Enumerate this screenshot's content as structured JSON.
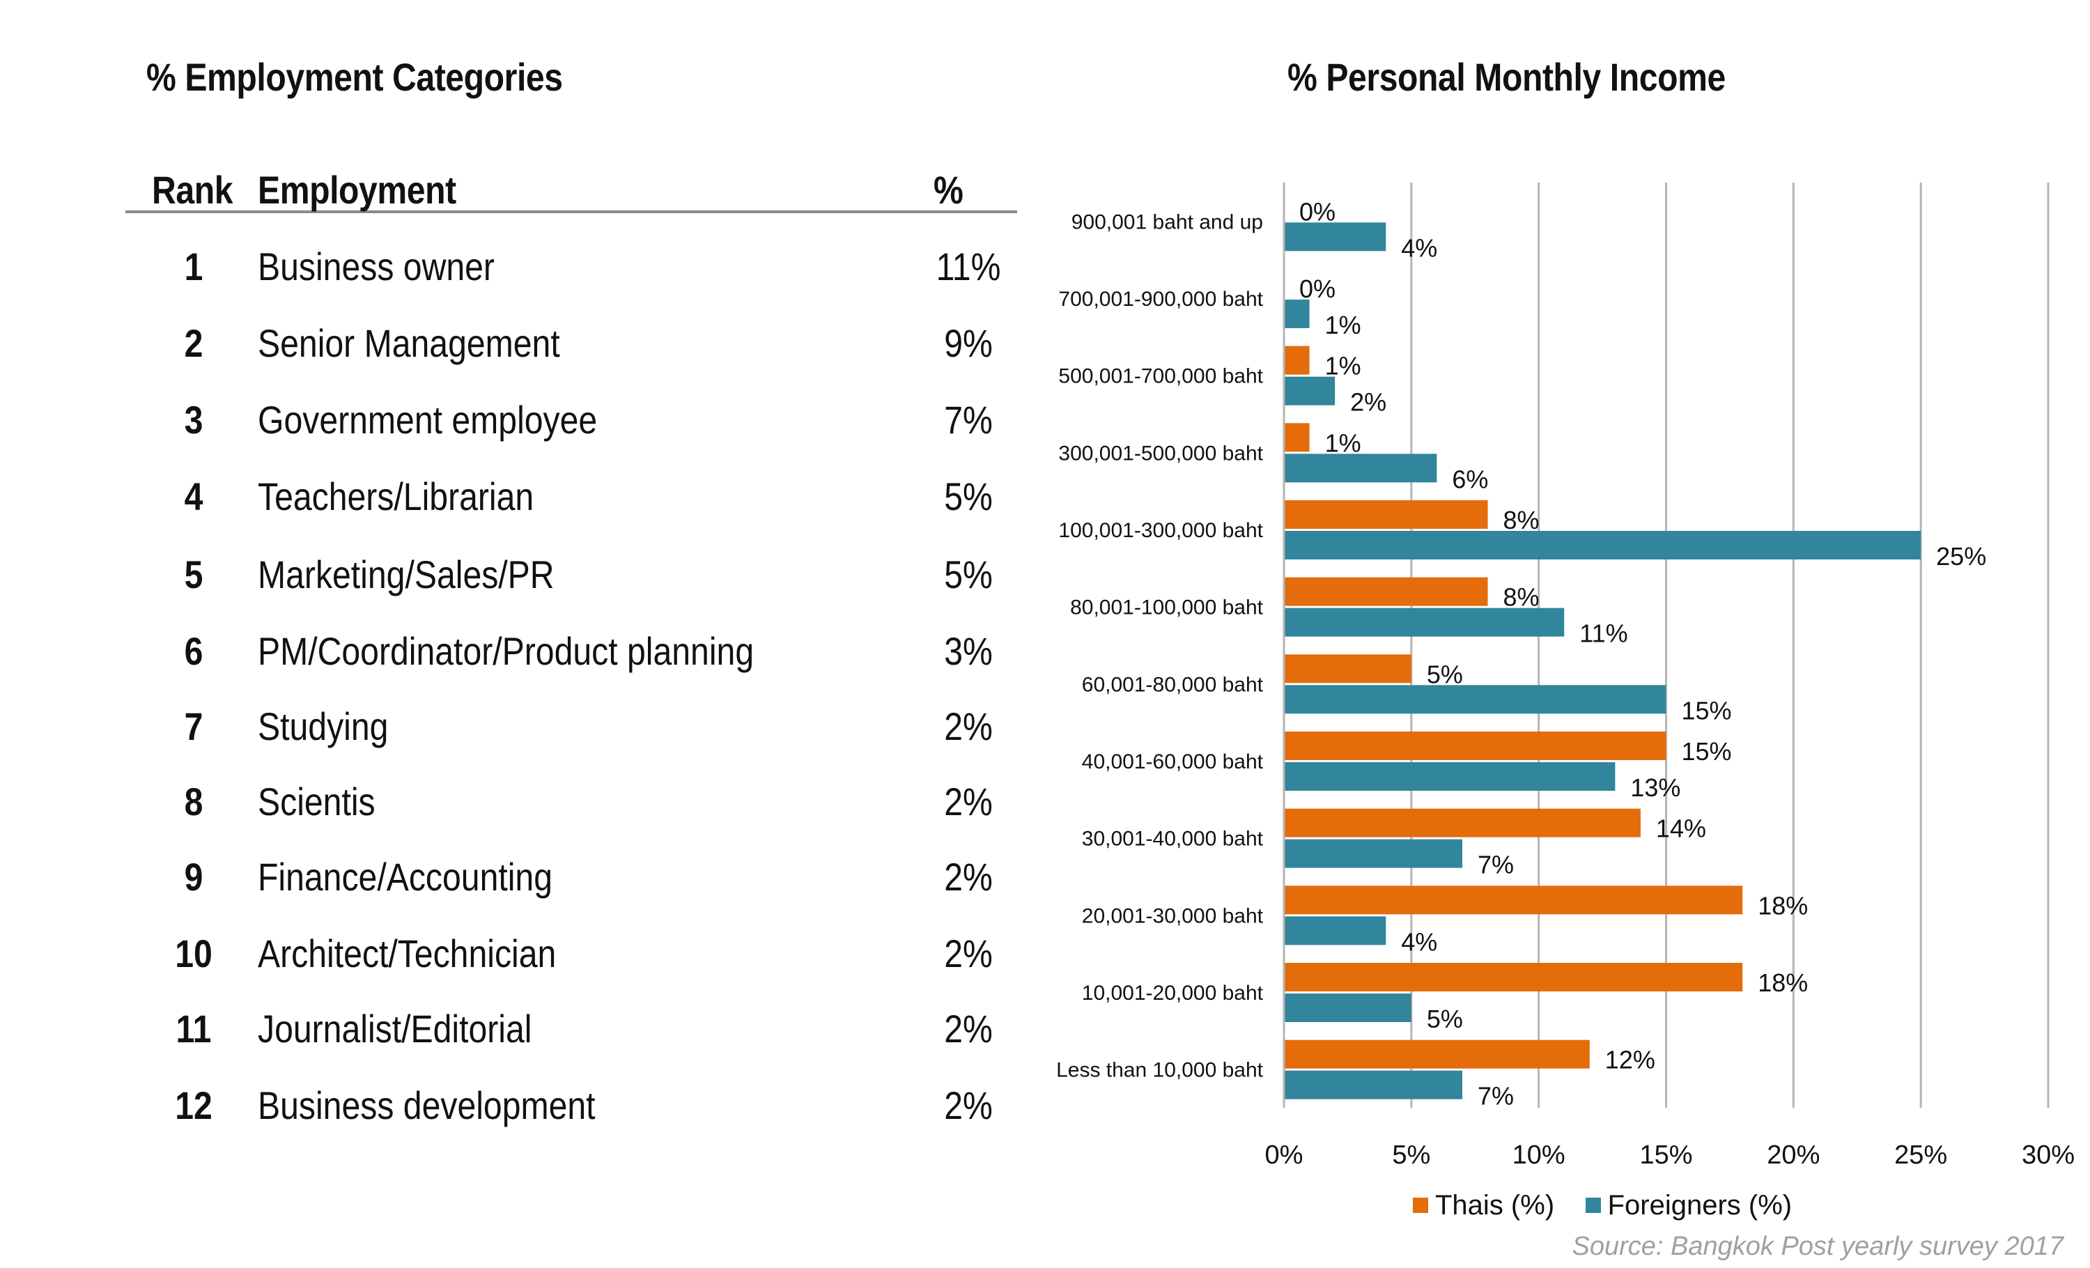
{
  "left": {
    "title": "% Employment Categories",
    "headers": {
      "rank": "Rank",
      "employment": "Employment",
      "pct": "%"
    },
    "rows": [
      {
        "rank": "1",
        "job": "Business owner",
        "pct": "11%"
      },
      {
        "rank": "2",
        "job": "Senior Management",
        "pct": "9%"
      },
      {
        "rank": "3",
        "job": "Government employee",
        "pct": "7%"
      },
      {
        "rank": "4",
        "job": "Teachers/Librarian",
        "pct": "5%"
      },
      {
        "rank": "5",
        "job": "Marketing/Sales/PR",
        "pct": "5%"
      },
      {
        "rank": "6",
        "job": "PM/Coordinator/Product planning",
        "pct": "3%"
      },
      {
        "rank": "7",
        "job": "Studying",
        "pct": "2%"
      },
      {
        "rank": "8",
        "job": "Scientis",
        "pct": "2%"
      },
      {
        "rank": "9",
        "job": "Finance/Accounting",
        "pct": "2%"
      },
      {
        "rank": "10",
        "job": "Architect/Technician",
        "pct": "2%"
      },
      {
        "rank": "11",
        "job": "Journalist/Editorial",
        "pct": "2%"
      },
      {
        "rank": "12",
        "job": "Business development",
        "pct": "2%"
      }
    ]
  },
  "chart_data": {
    "type": "bar",
    "orientation": "horizontal",
    "title": "% Personal Monthly Income",
    "categories": [
      "900,001 baht and up",
      "700,001-900,000 baht",
      "500,001-700,000 baht",
      "300,001-500,000 baht",
      "100,001-300,000 baht",
      "80,001-100,000 baht",
      "60,001-80,000 baht",
      "40,001-60,000 baht",
      "30,001-40,000 baht",
      "20,001-30,000 baht",
      "10,001-20,000 baht",
      "Less than 10,000 baht"
    ],
    "series": [
      {
        "name": "Thais (%)",
        "color": "#e46c0a",
        "values": [
          0,
          0,
          1,
          1,
          8,
          8,
          5,
          15,
          14,
          18,
          18,
          12
        ],
        "labels": [
          "0%",
          "0%",
          "1%",
          "1%",
          "8%",
          "8%",
          "5%",
          "15%",
          "14%",
          "18%",
          "18%",
          "12%"
        ]
      },
      {
        "name": "Foreigners (%)",
        "color": "#31859c",
        "values": [
          4,
          1,
          2,
          6,
          25,
          11,
          15,
          13,
          7,
          4,
          5,
          7
        ],
        "labels": [
          "4%",
          "1%",
          "2%",
          "6%",
          "25%",
          "11%",
          "15%",
          "13%",
          "7%",
          "4%",
          "5%",
          "7%"
        ]
      }
    ],
    "xlim": [
      0,
      30
    ],
    "xticks": [
      "0%",
      "5%",
      "10%",
      "15%",
      "20%",
      "25%",
      "30%"
    ],
    "grid": "vertical",
    "legend": "bottom"
  },
  "source": "Source: Bangkok Post yearly survey 2017"
}
